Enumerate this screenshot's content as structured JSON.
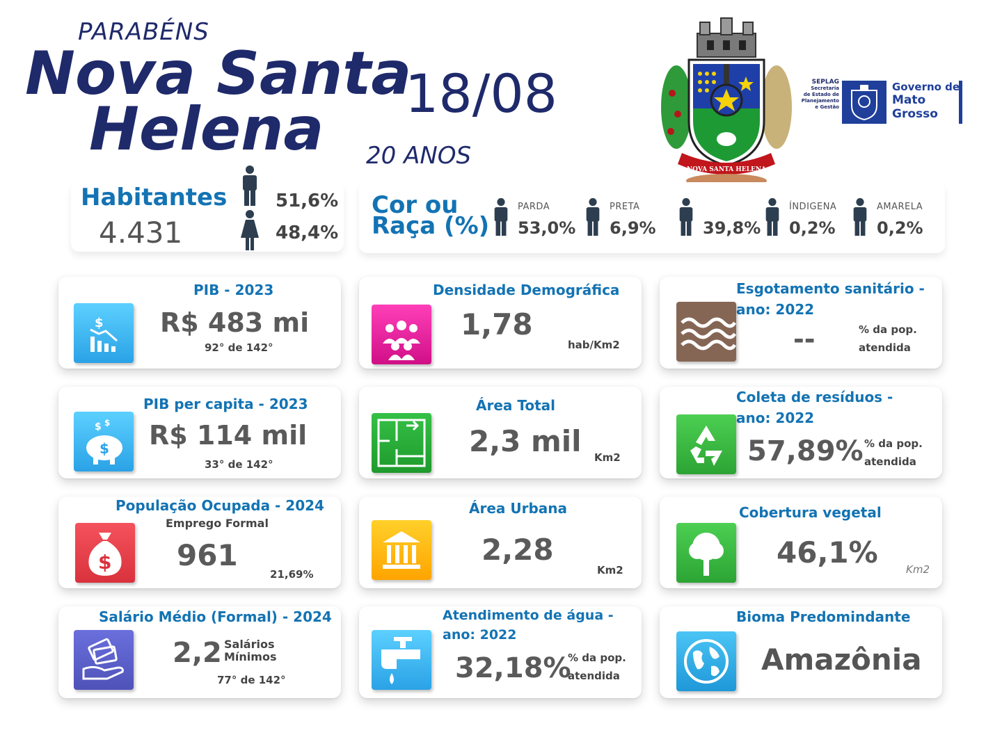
{
  "header": {
    "congrats": "PARABÉNS",
    "city_line1": "Nova Santa",
    "city_line2": "Helena",
    "date": "18/08",
    "years": "20 ANOS"
  },
  "crest": {
    "banner_text": "NOVA SANTA HELENA"
  },
  "government": {
    "seplag": "SEPLAG",
    "seplag_l1": "Secretaria",
    "seplag_l2": "de Estado de",
    "seplag_l3": "Planejamento",
    "seplag_l4": "e Gestão",
    "gov_l1": "Governo de",
    "gov_l2": "Mato",
    "gov_l3": "Grosso"
  },
  "habitantes": {
    "label": "Habitantes",
    "value": "4.431",
    "male_pct": "51,6%",
    "female_pct": "48,4%"
  },
  "race": {
    "title_l1": "Cor ou",
    "title_l2": "Raça (%)",
    "items": [
      {
        "label": "PARDA",
        "value": "53,0%"
      },
      {
        "label": "PRETA",
        "value": "6,9%"
      },
      {
        "label": "",
        "value": "39,8%"
      },
      {
        "label": "ÍNDIGENA",
        "value": "0,2%"
      },
      {
        "label": "AMARELA",
        "value": "0,2%"
      }
    ]
  },
  "cards": {
    "pib": {
      "title": "PIB - 2023",
      "value": "R$ 483 mi",
      "rank": "92° de 142°",
      "icon": "chart-down-icon",
      "color": "#3fb7f0"
    },
    "densidade": {
      "title": "Densidade Demográfica",
      "value": "1,78",
      "unit": "hab/Km2",
      "icon": "people-group-icon",
      "color": "#e0109a"
    },
    "esgoto": {
      "title_l1": "Esgotamento sanitário -",
      "title_l2": "ano: 2022",
      "value": "--",
      "unit_l1": "% da pop.",
      "unit_l2": "atendida",
      "icon": "waves-icon",
      "color": "#8a6a55"
    },
    "pib_pc": {
      "title": "PIB per capita - 2023",
      "value": "R$ 114 mil",
      "rank": "33° de 142°",
      "icon": "piggy-bank-icon",
      "color": "#3fb7f0"
    },
    "area_total": {
      "title": "Área Total",
      "value": "2,3 mil",
      "unit": "Km2",
      "icon": "floor-plan-icon",
      "color": "#2fae3a"
    },
    "residuos": {
      "title_l1": "Coleta de resíduos -",
      "title_l2": "ano: 2022",
      "value": "57,89%",
      "unit_l1": "% da pop.",
      "unit_l2": "atendida",
      "icon": "recycle-icon",
      "color": "#3dba3f"
    },
    "pop_ocup": {
      "title": "População Ocupada - 2024",
      "subtitle": "Emprego Formal",
      "value": "961",
      "pct": "21,69%",
      "icon": "money-bag-icon",
      "color": "#e8414b"
    },
    "area_urbana": {
      "title": "Área Urbana",
      "value": "2,28",
      "unit": "Km2",
      "icon": "bank-building-icon",
      "color": "#ffbb00"
    },
    "cobertura": {
      "title": "Cobertura vegetal",
      "value": "46,1%",
      "unit": "Km2",
      "icon": "tree-icon",
      "color": "#3dba3f"
    },
    "salario": {
      "title": "Salário Médio (Formal) - 2024",
      "value": "2,2",
      "unit_l1": "Salários",
      "unit_l2": "Mínimos",
      "rank": "77° de 142°",
      "icon": "hand-cash-icon",
      "color": "#5a5fc8"
    },
    "agua": {
      "title_l1": "Atendimento de água -",
      "title_l2": "ano: 2022",
      "value": "32,18%",
      "unit_l1": "% da pop.",
      "unit_l2": "atendida",
      "icon": "faucet-icon",
      "color": "#3fb7f0"
    },
    "bioma": {
      "title": "Bioma Predomindante",
      "value": "Amazônia",
      "icon": "globe-icon",
      "color": "#2aa8e6"
    }
  }
}
